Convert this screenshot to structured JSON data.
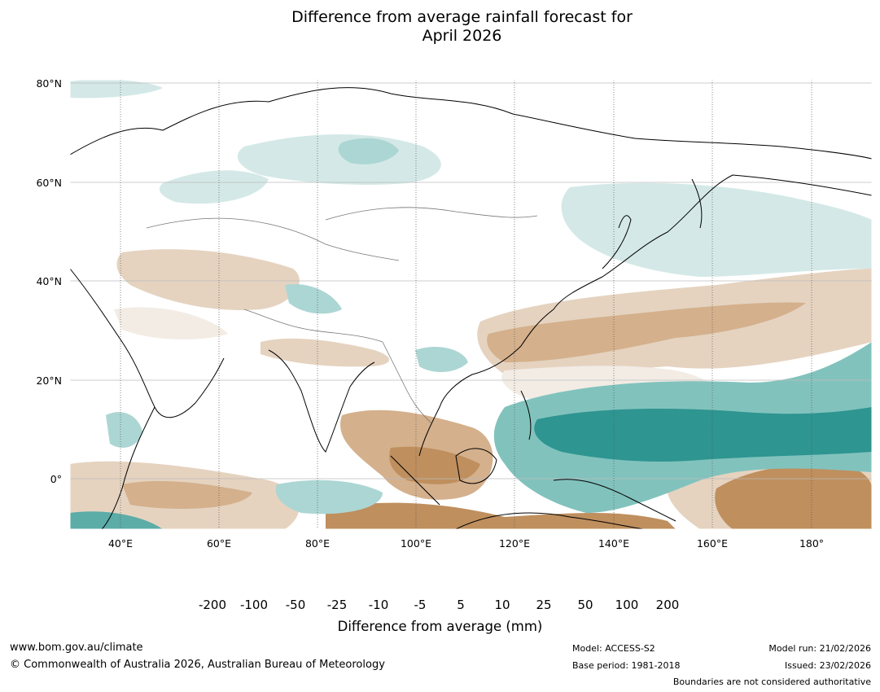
{
  "title_line1": "Difference from average rainfall forecast for",
  "title_line2": "April 2026",
  "lat_labels": [
    "80°N",
    "60°N",
    "40°N",
    "20°N",
    "0°"
  ],
  "lon_labels": [
    "40°E",
    "60°E",
    "80°E",
    "100°E",
    "120°E",
    "140°E",
    "160°E",
    "180°"
  ],
  "colorbar": {
    "ticks": [
      "-200",
      "-100",
      "-50",
      "-25",
      "-10",
      "-5",
      "5",
      "10",
      "25",
      "50",
      "100",
      "200"
    ],
    "colors": [
      "#a97238",
      "#bf8f5e",
      "#d4b08c",
      "#e5d3c0",
      "#f2ece5",
      "#ffffff",
      "#d4e9e7",
      "#acd6d3",
      "#82c2bd",
      "#5caca8",
      "#2e9591"
    ],
    "low_extend_color": "#8c5a28",
    "high_extend_color": "#1e6f6b",
    "label": "Difference from average (mm)"
  },
  "footer": {
    "url": "www.bom.gov.au/climate",
    "copyright": "© Commonwealth of Australia 2026, Australian Bureau of Meteorology",
    "model": "Model: ACCESS-S2",
    "base_period": "Base period: 1981-2018",
    "model_run": "Model run: 21/02/2026",
    "issued": "Issued: 23/02/2026",
    "disclaimer": "Boundaries are not considered authoritative"
  }
}
